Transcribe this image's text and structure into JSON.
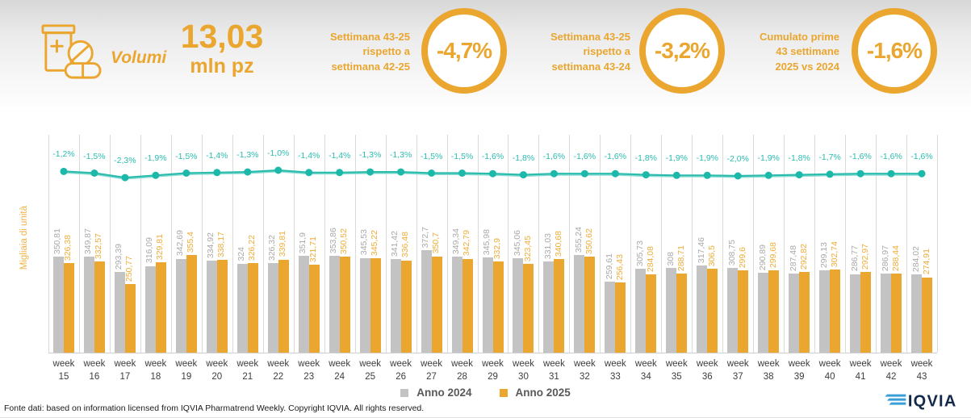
{
  "header": {
    "metric_title": "Volumi",
    "total_value": "13,03",
    "total_unit": "mln pz",
    "accent_color": "#EAA62F",
    "kpis": [
      {
        "label_lines": [
          "Settimana 43-25",
          "rispetto a",
          "settimana 42-25"
        ],
        "value": "-4,7%"
      },
      {
        "label_lines": [
          "Settimana 43-25",
          "rispetto a",
          "settimana 43-24"
        ],
        "value": "-3,2%"
      },
      {
        "label_lines": [
          "Cumulato prime",
          "43 settimane",
          "2025 vs 2024"
        ],
        "value": "-1,6%"
      }
    ]
  },
  "chart_data": {
    "type": "bar",
    "title": "",
    "xlabel": "",
    "ylabel": "Migliaia di unità",
    "grid": "vertical",
    "legend_position": "bottom",
    "categories": [
      "week 15",
      "week 16",
      "week 17",
      "week 18",
      "week 19",
      "week 20",
      "week 21",
      "week 22",
      "week 23",
      "week 24",
      "week 25",
      "week 26",
      "week 27",
      "week 28",
      "week 29",
      "week 30",
      "week 31",
      "week 32",
      "week 33",
      "week 34",
      "week 35",
      "week 36",
      "week 37",
      "week 38",
      "week 39",
      "week 40",
      "week 41",
      "week 42",
      "week 43"
    ],
    "series": [
      {
        "name": "Anno 2024",
        "color": "#C3C3C3",
        "label_color": "#A9A9A9",
        "values": [
          350.81,
          349.87,
          293.39,
          316.09,
          342.69,
          334.92,
          324,
          326.32,
          351.9,
          353.86,
          345.53,
          341.42,
          372.7,
          349.34,
          345.98,
          345.06,
          331.03,
          355.24,
          259.61,
          305.73,
          308,
          317.46,
          308.75,
          290.89,
          287.48,
          299.13,
          286.77,
          286.97,
          284.02
        ],
        "labels": [
          "350,81",
          "349,87",
          "293,39",
          "316,09",
          "342,69",
          "334,92",
          "324",
          "326,32",
          "351,9",
          "353,86",
          "345,53",
          "341,42",
          "372,7",
          "349,34",
          "345,98",
          "345,06",
          "331,03",
          "355,24",
          "259,61",
          "305,73",
          "308",
          "317,46",
          "308,75",
          "290,89",
          "287,48",
          "299,13",
          "286,77",
          "286,97",
          "284,02"
        ]
      },
      {
        "name": "Anno 2025",
        "color": "#EAA62F",
        "label_color": "#EFAD38",
        "values": [
          326.38,
          332.57,
          250.77,
          329.81,
          355.4,
          338.17,
          326.22,
          339.81,
          321.71,
          350.52,
          345.22,
          336.48,
          350.7,
          342.79,
          332.9,
          323.45,
          340.68,
          350.62,
          256.43,
          284.08,
          288.71,
          306.5,
          299.6,
          299.68,
          292.82,
          302.74,
          292.97,
          288.44,
          274.91
        ],
        "labels": [
          "326,38",
          "332,57",
          "250,77",
          "329,81",
          "355,4",
          "338,17",
          "326,22",
          "339,81",
          "321,71",
          "350,52",
          "345,22",
          "336,48",
          "350,7",
          "342,79",
          "332,9",
          "323,45",
          "340,68",
          "350,62",
          "256,43",
          "284,08",
          "288,71",
          "306,5",
          "299,6",
          "299,68",
          "292,82",
          "302,74",
          "292,97",
          "288,44",
          "274,91"
        ]
      }
    ],
    "delta_line": {
      "color": "#2BBCAE",
      "dot_color": "#1CB8AA",
      "values": [
        -1.2,
        -1.5,
        -2.3,
        -1.9,
        -1.5,
        -1.4,
        -1.3,
        -1.0,
        -1.4,
        -1.4,
        -1.3,
        -1.3,
        -1.5,
        -1.5,
        -1.6,
        -1.8,
        -1.6,
        -1.6,
        -1.6,
        -1.8,
        -1.9,
        -1.9,
        -2.0,
        -1.9,
        -1.8,
        -1.7,
        -1.6,
        -1.6,
        -1.6
      ],
      "labels": [
        "-1,2%",
        "-1,5%",
        "-2,3%",
        "-1,9%",
        "-1,5%",
        "-1,4%",
        "-1,3%",
        "-1,0%",
        "-1,4%",
        "-1,4%",
        "-1,3%",
        "-1,3%",
        "-1,5%",
        "-1,5%",
        "-1,6%",
        "-1,8%",
        "-1,6%",
        "-1,6%",
        "-1,6%",
        "-1,8%",
        "-1,9%",
        "-1,9%",
        "-2,0%",
        "-1,9%",
        "-1,8%",
        "-1,7%",
        "-1,6%",
        "-1,6%",
        "-1,6%"
      ]
    }
  },
  "footer": {
    "source": "Fonte dati: based on information licensed from IQVIA Pharmatrend Weekly. Copyright IQVIA. All rights reserved.",
    "logo_text": "IQVIA"
  }
}
